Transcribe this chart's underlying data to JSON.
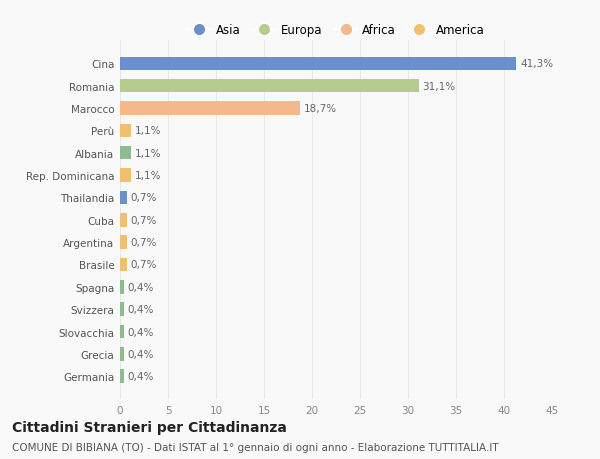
{
  "categories": [
    "Germania",
    "Grecia",
    "Slovacchia",
    "Svizzera",
    "Spagna",
    "Brasile",
    "Argentina",
    "Cuba",
    "Thailandia",
    "Rep. Dominicana",
    "Albania",
    "Perù",
    "Marocco",
    "Romania",
    "Cina"
  ],
  "values": [
    0.4,
    0.4,
    0.4,
    0.4,
    0.4,
    0.7,
    0.7,
    0.7,
    0.7,
    1.1,
    1.1,
    1.1,
    18.7,
    31.1,
    41.3
  ],
  "colors": [
    "#8fbc8f",
    "#8fbc8f",
    "#8fbc8f",
    "#8fbc8f",
    "#8fbc8f",
    "#f0c070",
    "#f0c070",
    "#f0c070",
    "#6b8fc9",
    "#f0c070",
    "#8fbc8f",
    "#f0c070",
    "#f5b88a",
    "#b5cc8e",
    "#6b8fc9"
  ],
  "labels": [
    "0,4%",
    "0,4%",
    "0,4%",
    "0,4%",
    "0,4%",
    "0,7%",
    "0,7%",
    "0,7%",
    "0,7%",
    "1,1%",
    "1,1%",
    "1,1%",
    "18,7%",
    "31,1%",
    "41,3%"
  ],
  "legend": [
    {
      "label": "Asia",
      "color": "#6b8fc9"
    },
    {
      "label": "Europa",
      "color": "#b5cc8e"
    },
    {
      "label": "Africa",
      "color": "#f5b88a"
    },
    {
      "label": "America",
      "color": "#f0c070"
    }
  ],
  "xlim": [
    0,
    45
  ],
  "xticks": [
    0,
    5,
    10,
    15,
    20,
    25,
    30,
    35,
    40,
    45
  ],
  "title": "Cittadini Stranieri per Cittadinanza",
  "subtitle": "COMUNE DI BIBIANA (TO) - Dati ISTAT al 1° gennaio di ogni anno - Elaborazione TUTTITALIA.IT",
  "bg_color": "#f9f9f9",
  "grid_color": "#e8e8e8",
  "bar_height": 0.6,
  "title_fontsize": 10,
  "subtitle_fontsize": 7.5,
  "tick_fontsize": 7.5,
  "label_fontsize": 7.5,
  "legend_fontsize": 8.5
}
